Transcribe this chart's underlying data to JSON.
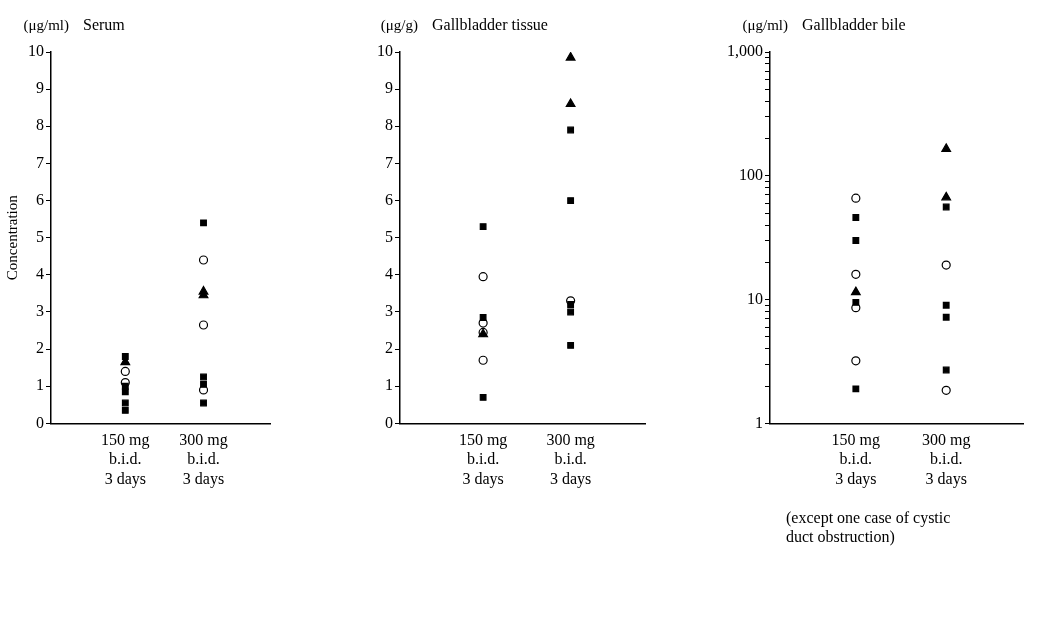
{
  "chart_data": [
    {
      "type": "scatter",
      "title": "Serum",
      "ylabel": "Concentration",
      "annotations": [
        "(μg/ml)"
      ],
      "categories": [
        "150 mg\nb.i.d.\n3 days",
        "300 mg\nb.i.d.\n3 days"
      ],
      "ylim": [
        0,
        10
      ],
      "yticks": [
        0,
        1,
        2,
        3,
        4,
        5,
        6,
        7,
        8,
        9,
        10
      ],
      "grid": false,
      "legend": false,
      "series": [
        {
          "color": "#000000",
          "marker": "square",
          "x": [
            "150 mg\nb.i.d.\n3 days",
            "150 mg\nb.i.d.\n3 days",
            "150 mg\nb.i.d.\n3 days",
            "150 mg\nb.i.d.\n3 days",
            "150 mg\nb.i.d.\n3 days",
            "300 mg\nb.i.d.\n3 days",
            "300 mg\nb.i.d.\n3 days",
            "300 mg\nb.i.d.\n3 days",
            "300 mg\nb.i.d.\n3 days"
          ],
          "values": [
            1.8,
            1.0,
            0.85,
            0.55,
            0.35,
            5.4,
            1.25,
            1.05,
            0.55
          ]
        },
        {
          "color": "#000000",
          "marker": "triangle",
          "x": [
            "150 mg\nb.i.d.\n3 days",
            "300 mg\nb.i.d.\n3 days",
            "300 mg\nb.i.d.\n3 days"
          ],
          "values": [
            1.65,
            3.55,
            3.45
          ]
        },
        {
          "color": "#000000",
          "marker": "circle",
          "x": [
            "150 mg\nb.i.d.\n3 days",
            "150 mg\nb.i.d.\n3 days",
            "300 mg\nb.i.d.\n3 days",
            "300 mg\nb.i.d.\n3 days",
            "300 mg\nb.i.d.\n3 days"
          ],
          "values": [
            1.4,
            1.1,
            4.4,
            2.65,
            0.9
          ]
        }
      ]
    },
    {
      "type": "scatter",
      "title": "Gallbladder tissue",
      "annotations": [
        "(μg/g)"
      ],
      "categories": [
        "150 mg\nb.i.d.\n3 days",
        "300 mg\nb.i.d.\n3 days"
      ],
      "ylim": [
        0,
        10
      ],
      "yticks": [
        0,
        1,
        2,
        3,
        4,
        5,
        6,
        7,
        8,
        9,
        10
      ],
      "grid": false,
      "legend": false,
      "series": [
        {
          "color": "#000000",
          "marker": "square",
          "x": [
            "150 mg\nb.i.d.\n3 days",
            "150 mg\nb.i.d.\n3 days",
            "150 mg\nb.i.d.\n3 days",
            "300 mg\nb.i.d.\n3 days",
            "300 mg\nb.i.d.\n3 days",
            "300 mg\nb.i.d.\n3 days",
            "300 mg\nb.i.d.\n3 days",
            "300 mg\nb.i.d.\n3 days"
          ],
          "values": [
            5.3,
            2.85,
            0.7,
            7.9,
            6.0,
            3.2,
            3.0,
            2.1
          ]
        },
        {
          "color": "#000000",
          "marker": "triangle",
          "x": [
            "150 mg\nb.i.d.\n3 days",
            "300 mg\nb.i.d.\n3 days",
            "300 mg\nb.i.d.\n3 days"
          ],
          "values": [
            2.4,
            9.85,
            8.6
          ]
        },
        {
          "color": "#000000",
          "marker": "circle",
          "x": [
            "150 mg\nb.i.d.\n3 days",
            "150 mg\nb.i.d.\n3 days",
            "150 mg\nb.i.d.\n3 days",
            "150 mg\nb.i.d.\n3 days",
            "300 mg\nb.i.d.\n3 days"
          ],
          "values": [
            3.95,
            2.7,
            2.45,
            1.7,
            3.3
          ]
        }
      ]
    },
    {
      "type": "scatter",
      "title": "Gallbladder bile",
      "annotations": [
        "(μg/ml)",
        "(except one case of cystic\nduct obstruction)"
      ],
      "categories": [
        "150 mg\nb.i.d.\n3 days",
        "300 mg\nb.i.d.\n3 days"
      ],
      "log": "y",
      "ylim": [
        1,
        1000
      ],
      "yticks": [
        1,
        {
          "value": 2,
          "label": null
        },
        {
          "value": 3,
          "label": null
        },
        {
          "value": 4,
          "label": null
        },
        {
          "value": 5,
          "label": null
        },
        {
          "value": 6,
          "label": null
        },
        {
          "value": 7,
          "label": null
        },
        {
          "value": 8,
          "label": null
        },
        {
          "value": 9,
          "label": null
        },
        10,
        {
          "value": 20,
          "label": null
        },
        {
          "value": 30,
          "label": null
        },
        {
          "value": 40,
          "label": null
        },
        {
          "value": 50,
          "label": null
        },
        {
          "value": 60,
          "label": null
        },
        {
          "value": 70,
          "label": null
        },
        {
          "value": 80,
          "label": null
        },
        {
          "value": 90,
          "label": null
        },
        100,
        {
          "value": 200,
          "label": null
        },
        {
          "value": 300,
          "label": null
        },
        {
          "value": 400,
          "label": null
        },
        {
          "value": 500,
          "label": null
        },
        {
          "value": 600,
          "label": null
        },
        {
          "value": 700,
          "label": null
        },
        {
          "value": 800,
          "label": null
        },
        {
          "value": 900,
          "label": null
        },
        {
          "value": 1000,
          "label": "1,000"
        }
      ],
      "grid": false,
      "legend": false,
      "series": [
        {
          "color": "#000000",
          "marker": "square",
          "x": [
            "150 mg\nb.i.d.\n3 days",
            "150 mg\nb.i.d.\n3 days",
            "150 mg\nb.i.d.\n3 days",
            "150 mg\nb.i.d.\n3 days",
            "300 mg\nb.i.d.\n3 days",
            "300 mg\nb.i.d.\n3 days",
            "300 mg\nb.i.d.\n3 days",
            "300 mg\nb.i.d.\n3 days"
          ],
          "values": [
            46,
            30,
            9.5,
            1.9,
            56,
            9,
            7.2,
            2.7
          ]
        },
        {
          "color": "#000000",
          "marker": "triangle",
          "x": [
            "150 mg\nb.i.d.\n3 days",
            "300 mg\nb.i.d.\n3 days",
            "300 mg\nb.i.d.\n3 days"
          ],
          "values": [
            11.5,
            165,
            67
          ]
        },
        {
          "color": "#000000",
          "marker": "circle",
          "x": [
            "150 mg\nb.i.d.\n3 days",
            "150 mg\nb.i.d.\n3 days",
            "150 mg\nb.i.d.\n3 days",
            "150 mg\nb.i.d.\n3 days",
            "300 mg\nb.i.d.\n3 days",
            "300 mg\nb.i.d.\n3 days"
          ],
          "values": [
            66,
            16,
            8.6,
            3.2,
            19,
            1.85
          ]
        }
      ]
    }
  ]
}
